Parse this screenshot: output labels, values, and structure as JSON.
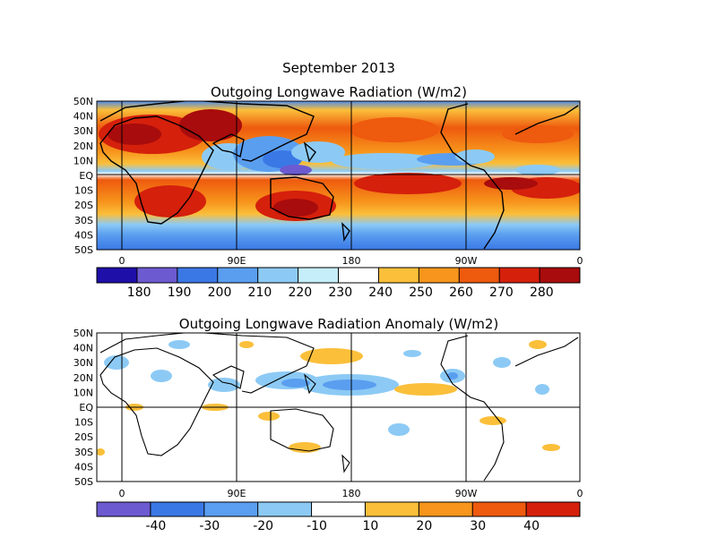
{
  "figure": {
    "title_line1": "September 2013",
    "panel1_title": "Outgoing Longwave Radiation (W/m2)",
    "panel2_title": "Outgoing Longwave Radiation Anomaly (W/m2)"
  },
  "axes": {
    "lat_labels": [
      "50N",
      "40N",
      "30N",
      "20N",
      "10N",
      "EQ",
      "10S",
      "20S",
      "30S",
      "40S",
      "50S"
    ],
    "lon_labels": [
      "0",
      "90E",
      "180",
      "90W",
      "0"
    ]
  },
  "colorbars": {
    "total": {
      "labels": [
        "180",
        "190",
        "200",
        "210",
        "220",
        "230",
        "240",
        "250",
        "260",
        "270",
        "280"
      ],
      "colors": [
        "#1e0fa8",
        "#6c5ad0",
        "#3a78e6",
        "#5a9ef0",
        "#8ccaf5",
        "#c5eefa",
        "#ffffff",
        "#fbbf3a",
        "#f7951c",
        "#ee5a0e",
        "#d5200c",
        "#a80c0c"
      ]
    },
    "anomaly": {
      "labels": [
        "-40",
        "-30",
        "-20",
        "-10",
        "10",
        "20",
        "30",
        "40"
      ],
      "colors": [
        "#6c5ad0",
        "#3a78e6",
        "#5a9ef0",
        "#8ccaf5",
        "#ffffff",
        "#fbbf3a",
        "#f7951c",
        "#ee5a0e",
        "#d5200c"
      ]
    }
  }
}
